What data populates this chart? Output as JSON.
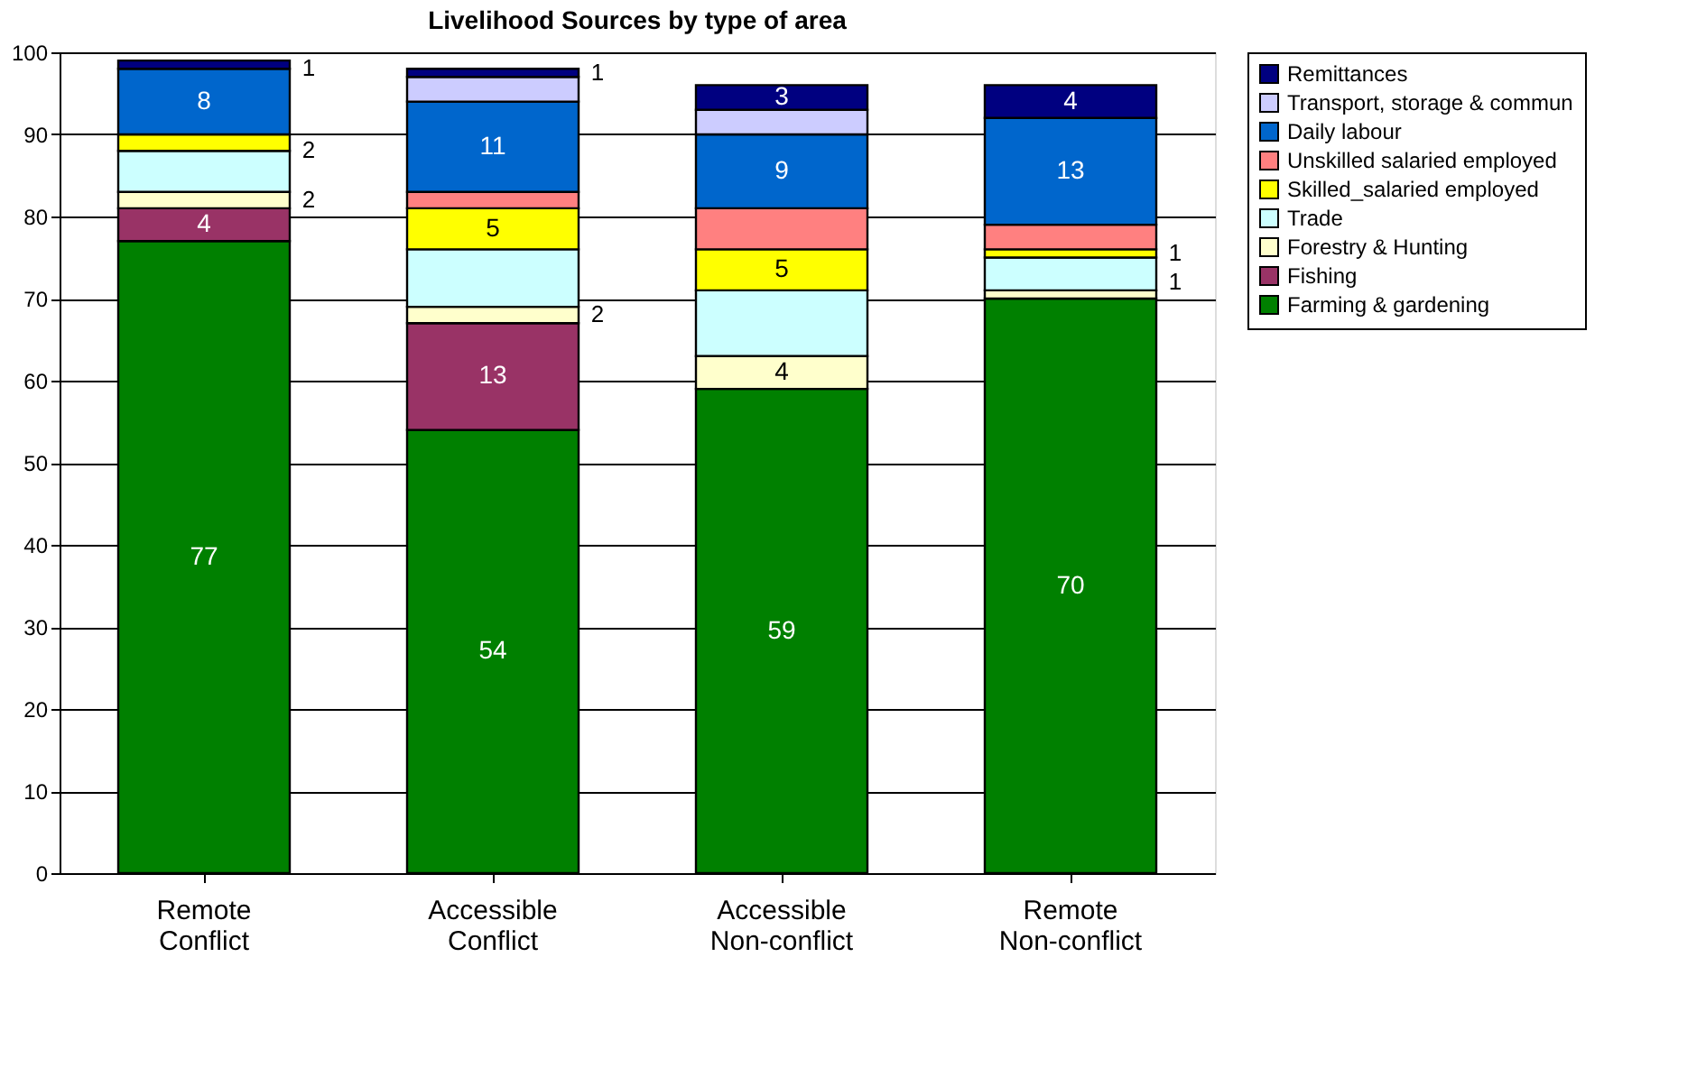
{
  "chart_data": {
    "type": "bar",
    "stacked": true,
    "title": "Livelihood Sources by type of area",
    "categories": [
      "Remote\nConflict",
      "Accessible\nConflict",
      "Accessible\nNon-conflict",
      "Remote\nNon-conflict"
    ],
    "ylim": [
      0,
      100
    ],
    "yticks": [
      0,
      10,
      20,
      30,
      40,
      50,
      60,
      70,
      80,
      90,
      100
    ],
    "grid": "y",
    "legend": "right",
    "series": [
      {
        "name": "Farming & gardening",
        "color": "#008000",
        "values": [
          77,
          54,
          59,
          70
        ],
        "value_labels": [
          "77",
          "54",
          "59",
          "70"
        ]
      },
      {
        "name": "Fishing",
        "color": "#993366",
        "values": [
          4,
          13,
          null,
          null
        ],
        "value_labels": [
          "4",
          "13",
          null,
          null
        ]
      },
      {
        "name": "Forestry & Hunting",
        "color": "#ffffcc",
        "values": [
          2,
          2,
          4,
          1
        ],
        "value_labels": [
          "2",
          "2",
          "4",
          "1"
        ]
      },
      {
        "name": "Trade",
        "color": "#ccffff",
        "values": [
          5,
          7,
          8,
          4
        ],
        "value_labels": [
          null,
          null,
          null,
          null
        ]
      },
      {
        "name": "Skilled_salaried employed",
        "color": "#ffff00",
        "values": [
          2,
          5,
          5,
          1
        ],
        "value_labels": [
          "2",
          "5",
          "5",
          "1"
        ]
      },
      {
        "name": "Unskilled salaried employed",
        "color": "#ff8080",
        "values": [
          null,
          2,
          5,
          3
        ],
        "value_labels": [
          null,
          null,
          null,
          null
        ]
      },
      {
        "name": "Daily labour",
        "color": "#0066cc",
        "values": [
          8,
          11,
          9,
          13
        ],
        "value_labels": [
          "8",
          "11",
          "9",
          "13"
        ]
      },
      {
        "name": "Transport, storage & commun",
        "color": "#ccccff",
        "values": [
          null,
          3,
          3,
          null
        ],
        "value_labels": [
          null,
          null,
          null,
          null
        ]
      },
      {
        "name": "Remittances",
        "color": "#000080",
        "values": [
          1,
          1,
          3,
          4
        ],
        "value_labels": [
          "1",
          "1",
          "3",
          "4"
        ]
      }
    ]
  }
}
